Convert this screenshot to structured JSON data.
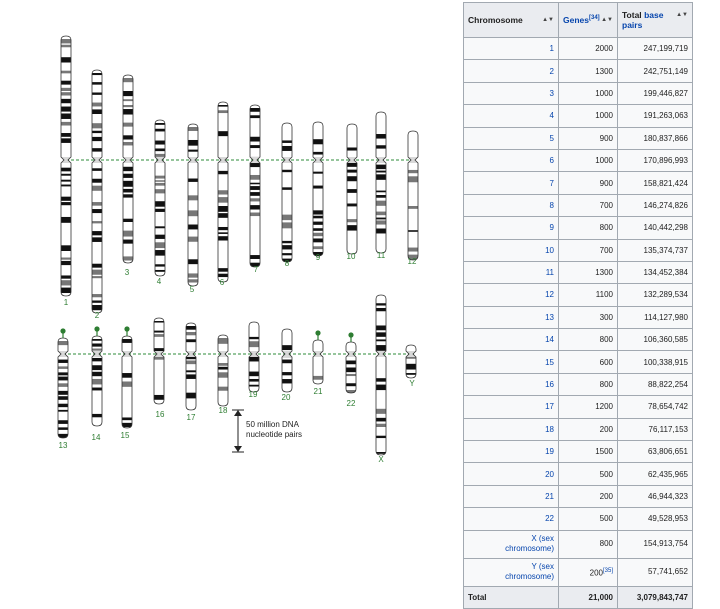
{
  "figure": {
    "top_row_labels": [
      "1",
      "2",
      "3",
      "4",
      "5",
      "6",
      "7",
      "8",
      "9",
      "10",
      "11",
      "12"
    ],
    "bottom_row_labels": [
      "13",
      "14",
      "15",
      "16",
      "17",
      "18",
      "19",
      "20",
      "21",
      "22",
      "X",
      "Y"
    ],
    "scale_bar_label_line1": "50 million DNA",
    "scale_bar_label_line2": "nucleotide pairs",
    "centromere_line_color": "#2e8b3a",
    "label_color": "#2e7d32"
  },
  "table": {
    "headers": {
      "chromosome": "Chromosome",
      "genes": "Genes",
      "genes_ref": "[34]",
      "bp_line1_prefix": "Total",
      "bp_line1_link": "base",
      "bp_line2": "pairs"
    },
    "rows": [
      {
        "chr": "1",
        "genes": "2000",
        "bp": "247,199,719"
      },
      {
        "chr": "2",
        "genes": "1300",
        "bp": "242,751,149"
      },
      {
        "chr": "3",
        "genes": "1000",
        "bp": "199,446,827"
      },
      {
        "chr": "4",
        "genes": "1000",
        "bp": "191,263,063"
      },
      {
        "chr": "5",
        "genes": "900",
        "bp": "180,837,866"
      },
      {
        "chr": "6",
        "genes": "1000",
        "bp": "170,896,993"
      },
      {
        "chr": "7",
        "genes": "900",
        "bp": "158,821,424"
      },
      {
        "chr": "8",
        "genes": "700",
        "bp": "146,274,826"
      },
      {
        "chr": "9",
        "genes": "800",
        "bp": "140,442,298"
      },
      {
        "chr": "10",
        "genes": "700",
        "bp": "135,374,737"
      },
      {
        "chr": "11",
        "genes": "1300",
        "bp": "134,452,384"
      },
      {
        "chr": "12",
        "genes": "1100",
        "bp": "132,289,534"
      },
      {
        "chr": "13",
        "genes": "300",
        "bp": "114,127,980"
      },
      {
        "chr": "14",
        "genes": "800",
        "bp": "106,360,585"
      },
      {
        "chr": "15",
        "genes": "600",
        "bp": "100,338,915"
      },
      {
        "chr": "16",
        "genes": "800",
        "bp": "88,822,254"
      },
      {
        "chr": "17",
        "genes": "1200",
        "bp": "78,654,742"
      },
      {
        "chr": "18",
        "genes": "200",
        "bp": "76,117,153"
      },
      {
        "chr": "19",
        "genes": "1500",
        "bp": "63,806,651"
      },
      {
        "chr": "20",
        "genes": "500",
        "bp": "62,435,965"
      },
      {
        "chr": "21",
        "genes": "200",
        "bp": "46,944,323"
      },
      {
        "chr": "22",
        "genes": "500",
        "bp": "49,528,953"
      }
    ],
    "x_row": {
      "chr_line1": "X (sex",
      "chr_line2": "chromosome)",
      "genes": "800",
      "bp": "154,913,754"
    },
    "y_row": {
      "chr_line1": "Y (sex",
      "chr_line2": "chromosome)",
      "genes": "200",
      "genes_ref": "[35]",
      "bp": "57,741,652"
    },
    "total_row": {
      "label": "Total",
      "genes": "21,000",
      "bp": "3,079,843,747"
    }
  }
}
